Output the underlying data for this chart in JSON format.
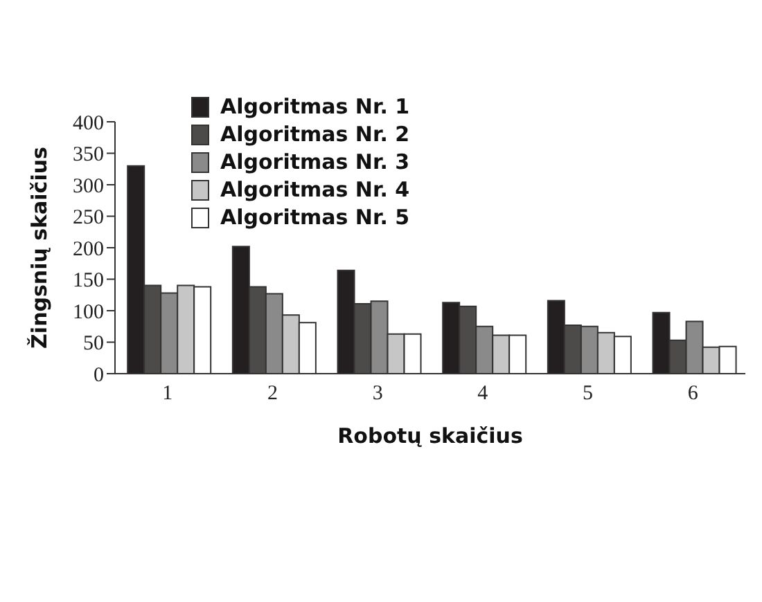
{
  "chart_data": {
    "type": "bar",
    "xlabel": "Robotų skaičius",
    "ylabel": "Žingsnių skaičius",
    "categories": [
      "1",
      "2",
      "3",
      "4",
      "5",
      "6"
    ],
    "series": [
      {
        "name": "Algoritmas Nr. 1",
        "color": "#231f20",
        "values": [
          330,
          202,
          164,
          113,
          116,
          97
        ]
      },
      {
        "name": "Algoritmas Nr. 2",
        "color": "#4d4a4a",
        "values": [
          140,
          138,
          111,
          107,
          77,
          53
        ]
      },
      {
        "name": "Algoritmas Nr. 3",
        "color": "#8a8a8a",
        "values": [
          128,
          127,
          115,
          75,
          75,
          83
        ]
      },
      {
        "name": "Algoritmas Nr. 4",
        "color": "#c6c6c6",
        "values": [
          140,
          93,
          63,
          61,
          65,
          42
        ]
      },
      {
        "name": "Algoritmas Nr. 5",
        "color": "#ffffff",
        "values": [
          138,
          81,
          63,
          61,
          59,
          43
        ]
      }
    ],
    "ylim": [
      0,
      400
    ],
    "yticks": [
      0,
      50,
      100,
      150,
      200,
      250,
      300,
      350,
      400
    ],
    "grid": false,
    "legend": "top left"
  }
}
